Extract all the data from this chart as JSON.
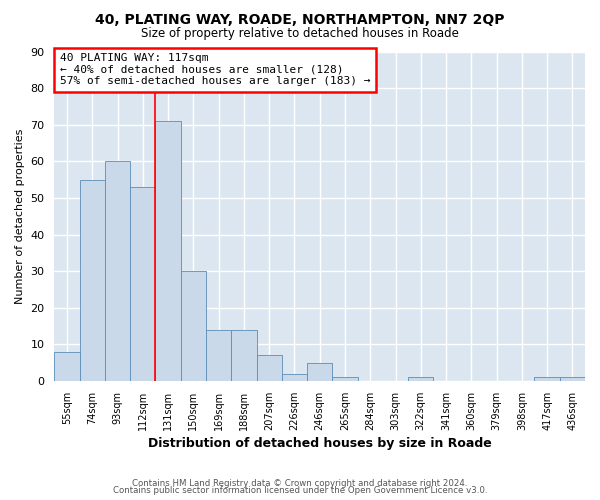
{
  "title": "40, PLATING WAY, ROADE, NORTHAMPTON, NN7 2QP",
  "subtitle": "Size of property relative to detached houses in Roade",
  "xlabel": "Distribution of detached houses by size in Roade",
  "ylabel": "Number of detached properties",
  "bar_labels": [
    "55sqm",
    "74sqm",
    "93sqm",
    "112sqm",
    "131sqm",
    "150sqm",
    "169sqm",
    "188sqm",
    "207sqm",
    "226sqm",
    "246sqm",
    "265sqm",
    "284sqm",
    "303sqm",
    "322sqm",
    "341sqm",
    "360sqm",
    "379sqm",
    "398sqm",
    "417sqm",
    "436sqm"
  ],
  "bar_values": [
    8,
    55,
    60,
    53,
    71,
    30,
    14,
    14,
    7,
    2,
    5,
    1,
    0,
    0,
    1,
    0,
    0,
    0,
    0,
    1,
    1
  ],
  "bar_color": "#c9d9ea",
  "bar_edge_color": "#5b8db8",
  "plot_bg_color": "#dce6f0",
  "fig_bg_color": "#ffffff",
  "grid_color": "#ffffff",
  "ylim": [
    0,
    90
  ],
  "yticks": [
    0,
    10,
    20,
    30,
    40,
    50,
    60,
    70,
    80,
    90
  ],
  "property_line_x": 3.5,
  "property_line_color": "red",
  "annotation_title": "40 PLATING WAY: 117sqm",
  "annotation_line1": "← 40% of detached houses are smaller (128)",
  "annotation_line2": "57% of semi-detached houses are larger (183) →",
  "annotation_box_color": "#ffffff",
  "annotation_box_edge": "red",
  "footer1": "Contains HM Land Registry data © Crown copyright and database right 2024.",
  "footer2": "Contains public sector information licensed under the Open Government Licence v3.0."
}
